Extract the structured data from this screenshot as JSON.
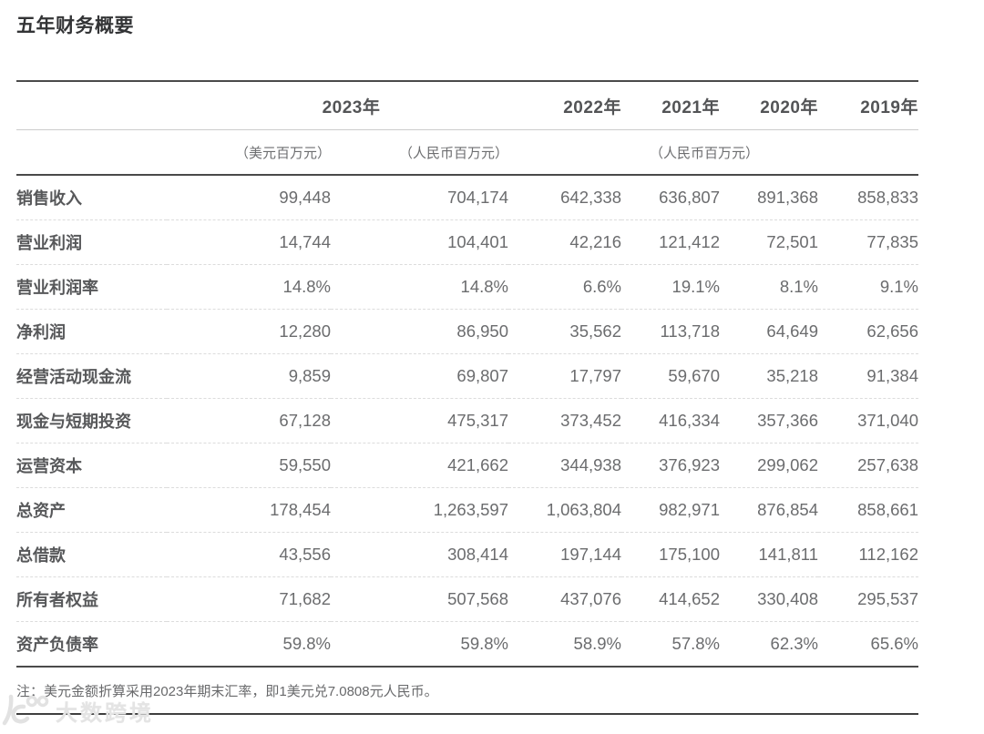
{
  "page": {
    "title": "五年财务概要",
    "note": "注：美元金额折算采用2023年期末汇率，即1美元兑7.0808元人民币。",
    "watermark_text": "大数跨境"
  },
  "table": {
    "year_headers": [
      "2023年",
      "2022年",
      "2021年",
      "2020年",
      "2019年"
    ],
    "unit_headers": [
      "（美元百万元）",
      "（人民币百万元）",
      "（人民币百万元）"
    ],
    "rows": [
      {
        "label": "销售收入",
        "values": [
          "99,448",
          "704,174",
          "642,338",
          "636,807",
          "891,368",
          "858,833"
        ]
      },
      {
        "label": "营业利润",
        "values": [
          "14,744",
          "104,401",
          "42,216",
          "121,412",
          "72,501",
          "77,835"
        ]
      },
      {
        "label": "营业利润率",
        "values": [
          "14.8%",
          "14.8%",
          "6.6%",
          "19.1%",
          "8.1%",
          "9.1%"
        ]
      },
      {
        "label": "净利润",
        "values": [
          "12,280",
          "86,950",
          "35,562",
          "113,718",
          "64,649",
          "62,656"
        ]
      },
      {
        "label": "经营活动现金流",
        "values": [
          "9,859",
          "69,807",
          "17,797",
          "59,670",
          "35,218",
          "91,384"
        ]
      },
      {
        "label": "现金与短期投资",
        "values": [
          "67,128",
          "475,317",
          "373,452",
          "416,334",
          "357,366",
          "371,040"
        ]
      },
      {
        "label": "运营资本",
        "values": [
          "59,550",
          "421,662",
          "344,938",
          "376,923",
          "299,062",
          "257,638"
        ]
      },
      {
        "label": "总资产",
        "values": [
          "178,454",
          "1,263,597",
          "1,063,804",
          "982,971",
          "876,854",
          "858,661"
        ]
      },
      {
        "label": "总借款",
        "values": [
          "43,556",
          "308,414",
          "197,144",
          "175,100",
          "141,811",
          "112,162"
        ]
      },
      {
        "label": "所有者权益",
        "values": [
          "71,682",
          "507,568",
          "437,076",
          "414,652",
          "330,408",
          "295,537"
        ]
      },
      {
        "label": "资产负债率",
        "values": [
          "59.8%",
          "59.8%",
          "58.9%",
          "57.8%",
          "62.3%",
          "65.6%"
        ]
      }
    ]
  },
  "colors": {
    "rule_dark": "#4a4a4a",
    "rule_light": "#cccccc",
    "row_divider_dashed": "#dcdcdc",
    "title_text": "#333436",
    "header_text": "#535456",
    "label_text": "#57585a",
    "value_text": "#6b6c6e",
    "note_text": "#68696b",
    "watermark": "#e4e4e4",
    "background": "#ffffff"
  }
}
